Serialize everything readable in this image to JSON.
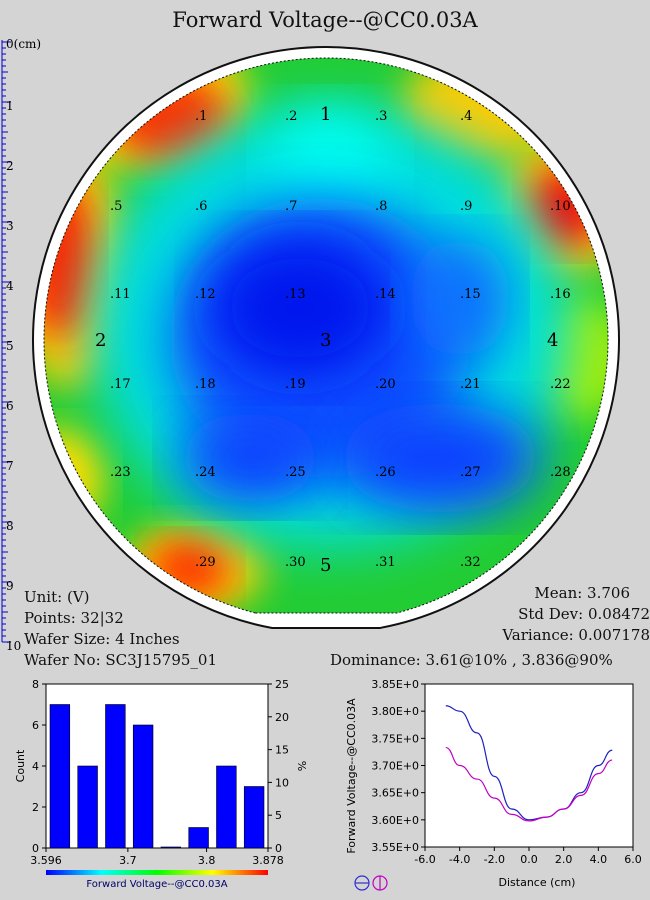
{
  "page": {
    "title": "Forward Voltage--@CC0.03A"
  },
  "ruler": {
    "first_label": "0(cm)",
    "labels": [
      "1",
      "2",
      "3",
      "4",
      "5",
      "6",
      "7",
      "8",
      "9",
      "10"
    ]
  },
  "wafer_map": {
    "point_labels": [
      ".1",
      ".2",
      ".3",
      ".4",
      ".5",
      ".6",
      ".7",
      ".8",
      ".9",
      ".10",
      ".11",
      ".12",
      ".13",
      ".14",
      ".15",
      ".16",
      ".17",
      ".18",
      ".19",
      ".20",
      ".21",
      ".22",
      ".23",
      ".24",
      ".25",
      ".26",
      ".27",
      ".28",
      ".29",
      ".30",
      ".31",
      ".32"
    ],
    "zone_labels": [
      "1",
      "2",
      "3",
      "4",
      "5"
    ]
  },
  "stats_left": {
    "unit": "Unit: (V)",
    "points": "Points: 32|32",
    "wafer_size": "Wafer Size: 4 Inches",
    "wafer_no": "Wafer No: SC3J15795_01"
  },
  "stats_right": {
    "mean": "Mean: 3.706",
    "std_dev": "Std Dev: 0.08472",
    "variance": "Variance: 0.007178"
  },
  "dominance": "Dominance: 3.61@10% , 3.836@90%",
  "chart_data": [
    {
      "type": "bar",
      "categories": [
        "3.596",
        "3.631",
        "3.667",
        "3.702",
        "3.737",
        "3.772",
        "3.808",
        "3.843"
      ],
      "values": [
        7,
        4,
        7,
        6,
        0,
        1,
        4,
        3
      ],
      "xlim": [
        3.596,
        3.878
      ],
      "x_ticks": [
        "3.596",
        "3.7",
        "3.8",
        "3.878"
      ],
      "x_tick_values": [
        3.596,
        3.7,
        3.8,
        3.878
      ],
      "ylim": [
        0,
        8
      ],
      "y_ticks": [
        "0",
        "2",
        "4",
        "6",
        "8"
      ],
      "ylabel": "Count",
      "y2lim": [
        0,
        25
      ],
      "y2_ticks": [
        "0",
        "5",
        "10",
        "15",
        "20",
        "25"
      ],
      "y2label": "%",
      "colorbar_label": "Forward Voltage--@CC0.03A",
      "bar_color": "#0000ff"
    },
    {
      "type": "line",
      "xlabel": "Distance (cm)",
      "ylabel": "Forward Voltage--@CC0.03A",
      "xlim": [
        -6.0,
        6.0
      ],
      "x_ticks": [
        "-6.0",
        "-4.0",
        "-2.0",
        "0.0",
        "2.0",
        "4.0",
        "6.0"
      ],
      "ylim": [
        3.55,
        3.85
      ],
      "y_ticks": [
        "3.55E+0",
        "3.60E+0",
        "3.65E+0",
        "3.70E+0",
        "3.75E+0",
        "3.80E+0",
        "3.85E+0"
      ],
      "series": [
        {
          "color": "#2020c0",
          "x": [
            -4.8,
            -4.0,
            -3.0,
            -2.0,
            -1.0,
            0.0,
            1.0,
            2.0,
            3.0,
            4.0,
            4.8
          ],
          "y": [
            3.81,
            3.8,
            3.76,
            3.68,
            3.62,
            3.6,
            3.605,
            3.62,
            3.65,
            3.7,
            3.728
          ]
        },
        {
          "color": "#c000c0",
          "x": [
            -4.8,
            -4.0,
            -3.0,
            -2.0,
            -1.0,
            0.0,
            1.0,
            2.0,
            3.0,
            4.0,
            4.8
          ],
          "y": [
            3.733,
            3.7,
            3.675,
            3.64,
            3.61,
            3.598,
            3.605,
            3.62,
            3.645,
            3.685,
            3.71
          ]
        }
      ]
    }
  ]
}
